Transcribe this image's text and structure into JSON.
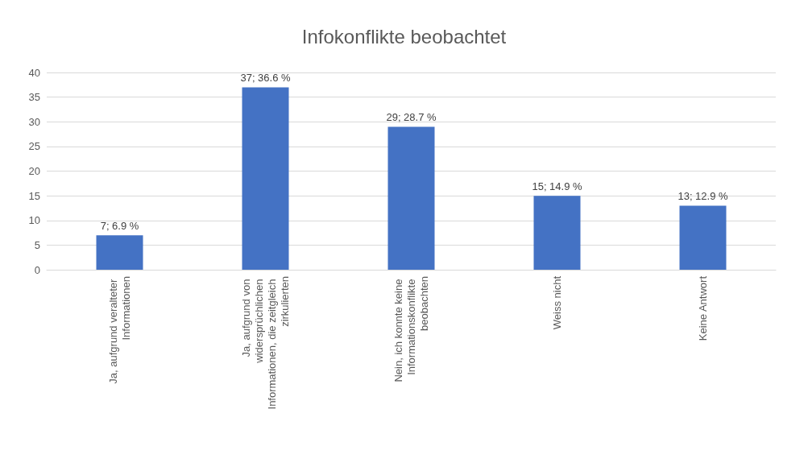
{
  "chart_data": {
    "type": "bar",
    "title": "Infokonflikte beobachtet",
    "categories": [
      "Ja, aufgrund veralteter Informationen",
      "Ja, aufgrund von widersprüchlichen Informationen, die zeitgleich zirkulierten",
      "Nein, ich konnte keine Informationskonflikte beobachten",
      "Weiss nicht",
      "Keine Antwort"
    ],
    "values": [
      7,
      37,
      29,
      15,
      13
    ],
    "value_labels": [
      "7; 6.9 %",
      "37; 36.6 %",
      "29; 28.7 %",
      "15; 14.9 %",
      "13; 12.9 %"
    ],
    "color": "#4472c4",
    "ylim": [
      0,
      40
    ],
    "yticks": [
      0,
      5,
      10,
      15,
      20,
      25,
      30,
      35,
      40
    ],
    "grid": "y"
  }
}
